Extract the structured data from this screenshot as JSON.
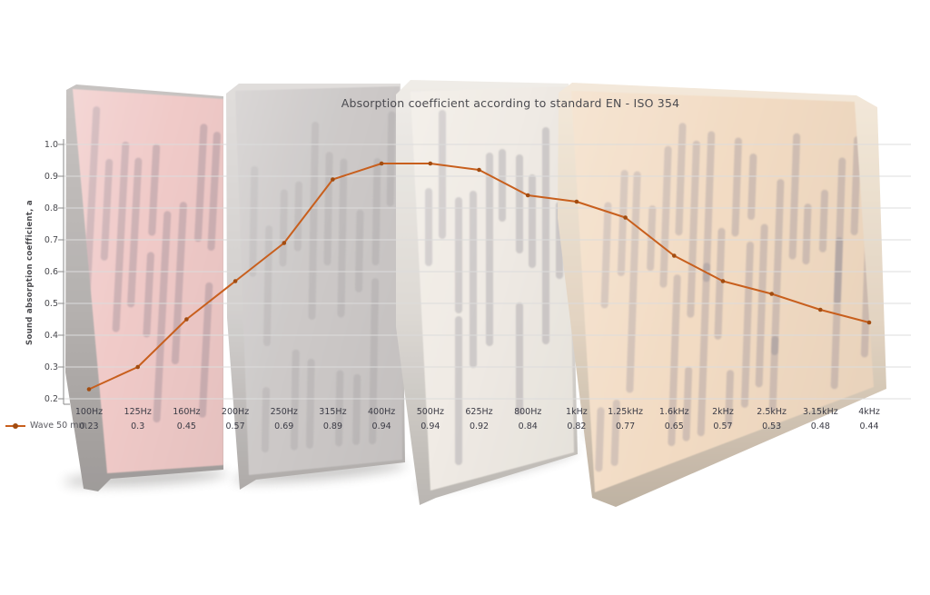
{
  "chart_data": {
    "type": "line",
    "title": "Absorption coefficient according to standard EN - ISO 354",
    "xlabel": "",
    "ylabel": "Sound absorption coefficient, a",
    "categories": [
      "100Hz",
      "125Hz",
      "160Hz",
      "200Hz",
      "250Hz",
      "315Hz",
      "400Hz",
      "500Hz",
      "625Hz",
      "800Hz",
      "1kHz",
      "1.25kHz",
      "1.6kHz",
      "2kHz",
      "2.5kHz",
      "3.15kHz",
      "4kHz"
    ],
    "series": [
      {
        "name": "Wave 50 mm",
        "values": [
          0.23,
          0.3,
          0.45,
          0.57,
          0.69,
          0.89,
          0.94,
          0.94,
          0.92,
          0.84,
          0.82,
          0.77,
          0.65,
          0.57,
          0.53,
          0.48,
          0.44
        ]
      }
    ],
    "value_labels": [
      "0.23",
      "0.3",
      "0.45",
      "0.57",
      "0.69",
      "0.89",
      "0.94",
      "0.94",
      "0.92",
      "0.84",
      "0.82",
      "0.77",
      "0.65",
      "0.57",
      "0.53",
      "0.48",
      "0.44"
    ],
    "ylim": [
      0.2,
      1.0
    ],
    "ytick_labels": [
      "0.2",
      "0.3",
      "0.4",
      "0.5",
      "0.6",
      "0.7",
      "0.8",
      "0.9",
      "1.0"
    ],
    "grid": true,
    "legend_position": "bottom-left",
    "line_color": "#c85f1d",
    "marker_color": "#a24c10",
    "grid_color": "#dcdcdc",
    "axis_color": "#8a8a8a"
  },
  "panels": [
    {
      "name": "red wave acoustic panel",
      "face_color": "#f0c8c6",
      "groove_color": "rgba(120,112,128,0.30)"
    },
    {
      "name": "grey wave acoustic panel",
      "face_color": "#cbc7c6",
      "groove_color": "rgba(115,112,122,0.15)"
    },
    {
      "name": "white wave acoustic panel",
      "face_color": "#f0ebe4",
      "groove_color": "rgba(118,116,130,0.28)"
    },
    {
      "name": "wood wave acoustic panel",
      "face_color": "#f2dac1",
      "groove_color": "rgba(120,115,135,0.28)"
    }
  ]
}
